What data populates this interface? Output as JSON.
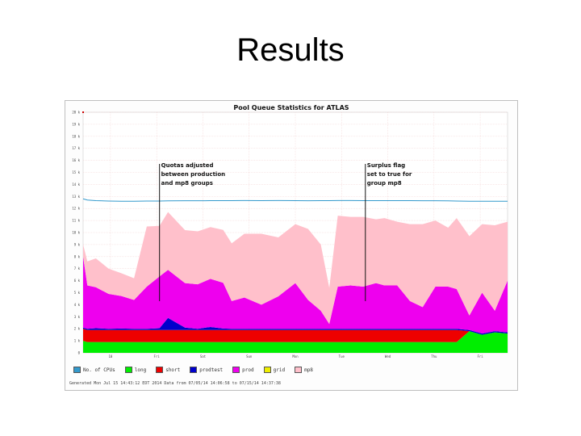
{
  "slide": {
    "title": "Results"
  },
  "chart_data": {
    "type": "area",
    "title": "Pool Queue Statistics for ATLAS",
    "xlabel": "",
    "ylabel": "",
    "ylim": [
      0,
      20000
    ],
    "yticks": [
      "0",
      "1 k",
      "2 k",
      "3 k",
      "4 k",
      "5 k",
      "6 k",
      "7 k",
      "8 k",
      "9 k",
      "10 k",
      "11 k",
      "12 k",
      "13 k",
      "14 k",
      "15 k",
      "16 k",
      "17 k",
      "18 k",
      "19 k",
      "20 k"
    ],
    "xticks": [
      "10",
      "Fri",
      "Sat",
      "Sun",
      "Mon",
      "Tue",
      "Wed",
      "Thu",
      "Fri"
    ],
    "x": [
      0,
      0.01,
      0.03,
      0.06,
      0.09,
      0.12,
      0.15,
      0.18,
      0.2,
      0.24,
      0.27,
      0.3,
      0.33,
      0.35,
      0.38,
      0.42,
      0.46,
      0.5,
      0.53,
      0.56,
      0.58,
      0.6,
      0.63,
      0.66,
      0.69,
      0.71,
      0.74,
      0.77,
      0.8,
      0.83,
      0.86,
      0.88,
      0.91,
      0.94,
      0.97,
      1.0
    ],
    "series": [
      {
        "name": "No. of CPUs",
        "kind": "line",
        "color": "#3399cc",
        "values": [
          12800,
          12700,
          12650,
          12620,
          12600,
          12600,
          12620,
          12620,
          12630,
          12640,
          12640,
          12650,
          12650,
          12650,
          12660,
          12650,
          12660,
          12650,
          12640,
          12650,
          12650,
          12660,
          12660,
          12650,
          12650,
          12650,
          12650,
          12650,
          12640,
          12640,
          12630,
          12620,
          12600,
          12600,
          12600,
          12600
        ]
      },
      {
        "name": "long",
        "color": "#00ee00",
        "values": [
          1000,
          900,
          900,
          900,
          900,
          900,
          900,
          900,
          900,
          900,
          900,
          900,
          900,
          900,
          900,
          900,
          900,
          900,
          900,
          900,
          900,
          900,
          900,
          900,
          900,
          900,
          900,
          900,
          900,
          900,
          900,
          900,
          1800,
          1500,
          1700,
          1600
        ]
      },
      {
        "name": "short",
        "color": "#ee0000",
        "values": [
          1000,
          1000,
          1000,
          1000,
          1000,
          1000,
          1000,
          1000,
          1000,
          1000,
          1000,
          1000,
          1000,
          1000,
          1000,
          1000,
          1000,
          1000,
          1000,
          1000,
          1000,
          1000,
          1000,
          1000,
          1000,
          1000,
          1000,
          1000,
          1000,
          1000,
          1000,
          1000,
          0,
          0,
          0,
          0
        ]
      },
      {
        "name": "prodtest",
        "color": "#0000cc",
        "values": [
          100,
          100,
          150,
          100,
          120,
          100,
          100,
          150,
          1000,
          200,
          100,
          250,
          120,
          100,
          100,
          100,
          100,
          100,
          100,
          100,
          100,
          100,
          100,
          100,
          100,
          100,
          100,
          100,
          100,
          100,
          100,
          100,
          100,
          100,
          100,
          100
        ]
      },
      {
        "name": "prod",
        "color": "#ee00ee",
        "values": [
          5900,
          3600,
          3400,
          2900,
          2700,
          2400,
          3500,
          4300,
          4000,
          3700,
          3700,
          4000,
          3800,
          2300,
          2600,
          2000,
          2700,
          3800,
          2400,
          1500,
          400,
          3500,
          3600,
          3500,
          3800,
          3600,
          3600,
          2300,
          1800,
          3500,
          3500,
          3300,
          1200,
          3400,
          1700,
          4300
        ]
      },
      {
        "name": "grid",
        "color": "#eeee00",
        "values": [
          0,
          0,
          0,
          0,
          0,
          0,
          0,
          0,
          0,
          0,
          0,
          0,
          0,
          0,
          0,
          0,
          0,
          0,
          0,
          0,
          0,
          0,
          0,
          0,
          0,
          0,
          0,
          0,
          0,
          0,
          0,
          0,
          0,
          0,
          0,
          0
        ]
      },
      {
        "name": "mp8",
        "color": "#ffc0cb",
        "values": [
          1000,
          2000,
          2400,
          2100,
          1900,
          1800,
          5000,
          4200,
          4800,
          4400,
          4400,
          4300,
          4400,
          4800,
          5300,
          5900,
          4900,
          4900,
          5900,
          5500,
          3000,
          5900,
          5700,
          5800,
          5300,
          5600,
          5300,
          6400,
          6900,
          5500,
          4900,
          5900,
          6600,
          5700,
          7100,
          4900
        ]
      }
    ],
    "annotations": [
      {
        "x": 0.18,
        "lines": [
          "Quotas adjusted",
          "between production",
          "and mp8 groups"
        ]
      },
      {
        "x": 0.665,
        "lines": [
          "Surplus flag",
          "set to true for",
          "group mp8"
        ]
      }
    ],
    "legend_position": "bottom-left",
    "grid": true,
    "footer": "Generated Mon Jul 15 14:43:12 EDT 2014  Data from 07/05/14 14:06:58 to 07/15/14 14:37:38"
  }
}
